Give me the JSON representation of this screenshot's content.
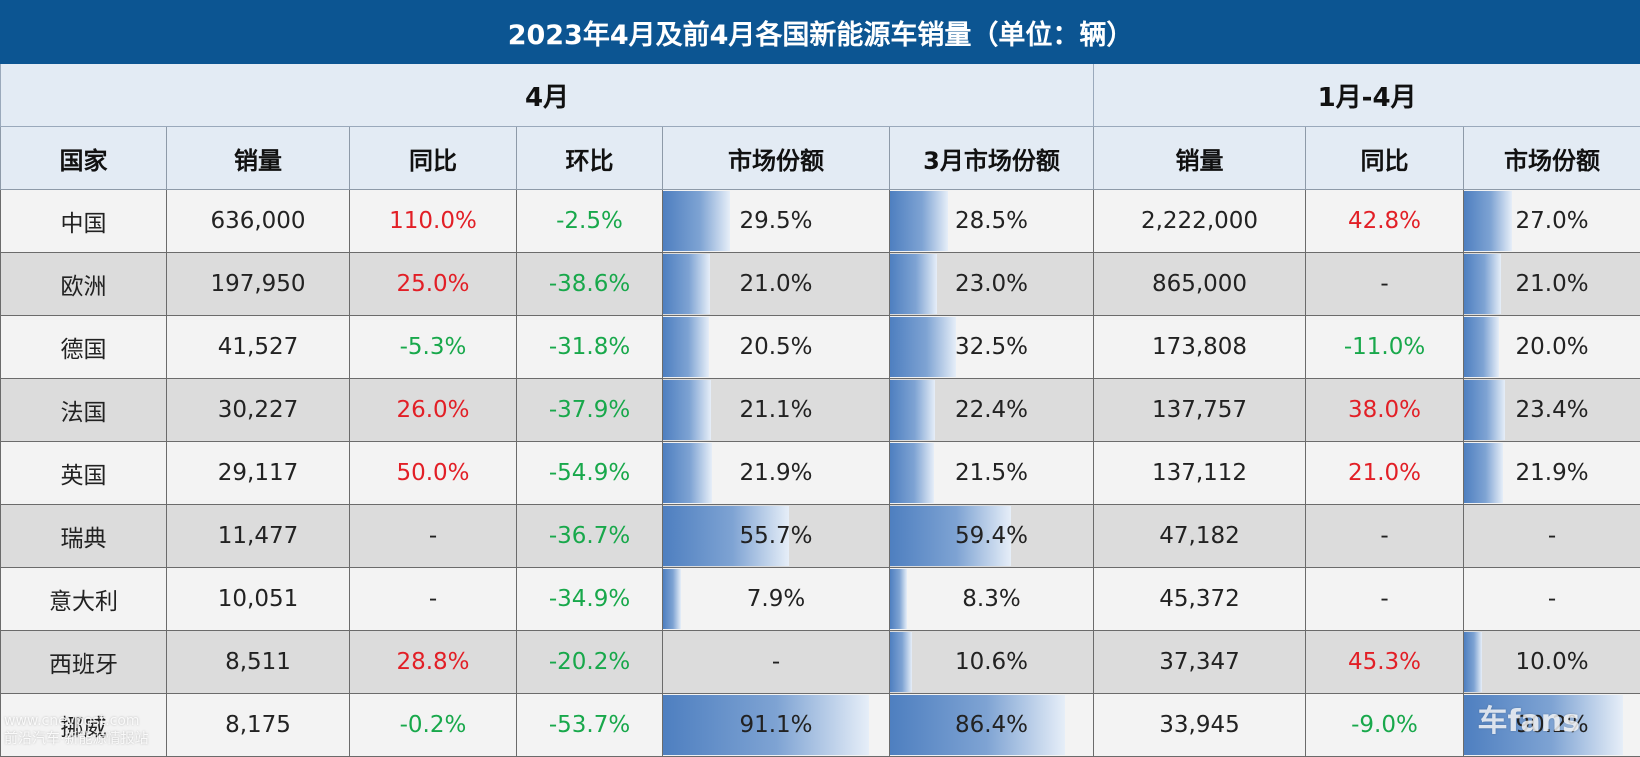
{
  "chart_data": {
    "type": "table",
    "title": "2023年4月及前4月各国新能源车销量（单位：辆）",
    "groups": [
      "4月",
      "1月-4月"
    ],
    "headers": [
      "国家",
      "销量",
      "同比",
      "环比",
      "市场份额",
      "3月市场份额",
      "销量",
      "同比",
      "市场份额"
    ],
    "rows": [
      [
        "中国",
        "636,000",
        "110.0%",
        "-2.5%",
        "29.5%",
        "28.5%",
        "2,222,000",
        "42.8%",
        "27.0%"
      ],
      [
        "欧洲",
        "197,950",
        "25.0%",
        "-38.6%",
        "21.0%",
        "23.0%",
        "865,000",
        "-",
        "21.0%"
      ],
      [
        "德国",
        "41,527",
        "-5.3%",
        "-31.8%",
        "20.5%",
        "32.5%",
        "173,808",
        "-11.0%",
        "20.0%"
      ],
      [
        "法国",
        "30,227",
        "26.0%",
        "-37.9%",
        "21.1%",
        "22.4%",
        "137,757",
        "38.0%",
        "23.4%"
      ],
      [
        "英国",
        "29,117",
        "50.0%",
        "-54.9%",
        "21.9%",
        "21.5%",
        "137,112",
        "21.0%",
        "21.9%"
      ],
      [
        "瑞典",
        "11,477",
        "-",
        "-36.7%",
        "55.7%",
        "59.4%",
        "47,182",
        "-",
        "-"
      ],
      [
        "意大利",
        "10,051",
        "-",
        "-34.9%",
        "7.9%",
        "8.3%",
        "45,372",
        "-",
        "-"
      ],
      [
        "西班牙",
        "8,511",
        "28.8%",
        "-20.2%",
        "-",
        "10.6%",
        "37,347",
        "45.3%",
        "10.0%"
      ],
      [
        "挪威",
        "8,175",
        "-0.2%",
        "-53.7%",
        "91.1%",
        "86.4%",
        "33,945",
        "-9.0%",
        "90.2%"
      ]
    ]
  },
  "watermarks": {
    "left_line1": "www.cnevpost.com",
    "left_line2": "前沿汽车·新能源情报站",
    "right": "车fans"
  },
  "colors": {
    "header_bg": "#0c5592",
    "subheader_bg": "#e3ebf4",
    "positive_red": "#e21f26",
    "negative_green": "#18a84b",
    "bar_blue": "#4e7fc0"
  }
}
